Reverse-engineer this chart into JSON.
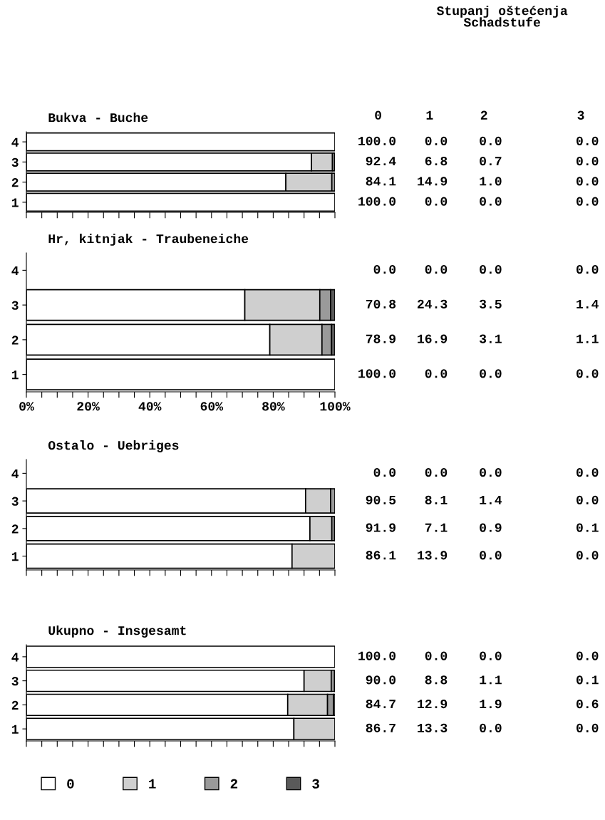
{
  "chart_data": [
    {
      "type": "bar",
      "orientation": "horizontal",
      "stacked": true,
      "title": "Bukva - Buche",
      "annotations": [
        "Stupanj oštećenja\nSchadstufe",
        "0",
        "1",
        "2",
        "3"
      ],
      "categories": [
        "4",
        "3",
        "2",
        "1"
      ],
      "series": [
        {
          "color": "#ffffff",
          "values": [
            100.0,
            92.4,
            84.1,
            100.0
          ],
          "value_labels": [
            "100.0",
            "92.4",
            "84.1",
            "100.0"
          ]
        },
        {
          "color": "#cfcfcf",
          "values": [
            0.0,
            6.8,
            14.9,
            0.0
          ],
          "value_labels": [
            "0.0",
            "6.8",
            "14.9",
            "0.0"
          ]
        },
        {
          "color": "#9a9a9a",
          "values": [
            0.0,
            0.7,
            1.0,
            0.0
          ],
          "value_labels": [
            "0.0",
            "0.7",
            "1.0",
            "0.0"
          ]
        },
        {
          "color": "#5a5a5a",
          "values": [
            0.0,
            0.0,
            0.0,
            0.0
          ],
          "value_labels": [
            "0.0",
            "0.0",
            "0.0",
            "0.0"
          ]
        }
      ],
      "xlim": [
        0,
        100
      ],
      "xticks": [
        {
          "value": 0,
          "label": null
        },
        {
          "value": 5,
          "label": null
        },
        {
          "value": 10,
          "label": null
        },
        {
          "value": 15,
          "label": null
        },
        {
          "value": 20,
          "label": null
        },
        {
          "value": 25,
          "label": null
        },
        {
          "value": 30,
          "label": null
        },
        {
          "value": 35,
          "label": null
        },
        {
          "value": 40,
          "label": null
        },
        {
          "value": 45,
          "label": null
        },
        {
          "value": 50,
          "label": null
        },
        {
          "value": 55,
          "label": null
        },
        {
          "value": 60,
          "label": null
        },
        {
          "value": 65,
          "label": null
        },
        {
          "value": 70,
          "label": null
        },
        {
          "value": 75,
          "label": null
        },
        {
          "value": 80,
          "label": null
        },
        {
          "value": 85,
          "label": null
        },
        {
          "value": 90,
          "label": null
        },
        {
          "value": 95,
          "label": null
        },
        {
          "value": 100,
          "label": null
        }
      ],
      "tick_labels": "y"
    },
    {
      "type": "bar",
      "orientation": "horizontal",
      "stacked": true,
      "title": "Hr, kitnjak - Traubeneiche",
      "categories": [
        "4",
        "3",
        "2",
        "1"
      ],
      "series": [
        {
          "color": "#ffffff",
          "values": [
            0.0,
            70.8,
            78.9,
            100.0
          ],
          "value_labels": [
            "0.0",
            "70.8",
            "78.9",
            "100.0"
          ]
        },
        {
          "color": "#cfcfcf",
          "values": [
            0.0,
            24.3,
            16.9,
            0.0
          ],
          "value_labels": [
            "0.0",
            "24.3",
            "16.9",
            "0.0"
          ]
        },
        {
          "color": "#9a9a9a",
          "values": [
            0.0,
            3.5,
            3.1,
            0.0
          ],
          "value_labels": [
            "0.0",
            "3.5",
            "3.1",
            "0.0"
          ]
        },
        {
          "color": "#5a5a5a",
          "values": [
            0.0,
            1.4,
            1.1,
            0.0
          ],
          "value_labels": [
            "0.0",
            "1.4",
            "1.1",
            "0.0"
          ]
        }
      ],
      "xlim": [
        0,
        100
      ],
      "xticks": [
        {
          "value": 0,
          "label": "0%"
        },
        {
          "value": 5,
          "label": null
        },
        {
          "value": 10,
          "label": null
        },
        {
          "value": 15,
          "label": null
        },
        {
          "value": 20,
          "label": "20%"
        },
        {
          "value": 25,
          "label": null
        },
        {
          "value": 30,
          "label": null
        },
        {
          "value": 35,
          "label": null
        },
        {
          "value": 40,
          "label": "40%"
        },
        {
          "value": 45,
          "label": null
        },
        {
          "value": 50,
          "label": null
        },
        {
          "value": 55,
          "label": null
        },
        {
          "value": 60,
          "label": "60%"
        },
        {
          "value": 65,
          "label": null
        },
        {
          "value": 70,
          "label": null
        },
        {
          "value": 75,
          "label": null
        },
        {
          "value": 80,
          "label": "80%"
        },
        {
          "value": 85,
          "label": null
        },
        {
          "value": 90,
          "label": null
        },
        {
          "value": 95,
          "label": null
        },
        {
          "value": 100,
          "label": "100%"
        }
      ]
    },
    {
      "type": "bar",
      "orientation": "horizontal",
      "stacked": true,
      "title": "Ostalo - Uebriges",
      "categories": [
        "4",
        "3",
        "2",
        "1"
      ],
      "series": [
        {
          "color": "#ffffff",
          "values": [
            0.0,
            90.5,
            91.9,
            86.1
          ],
          "value_labels": [
            "0.0",
            "90.5",
            "91.9",
            "86.1"
          ]
        },
        {
          "color": "#cfcfcf",
          "values": [
            0.0,
            8.1,
            7.1,
            13.9
          ],
          "value_labels": [
            "0.0",
            "8.1",
            "7.1",
            "13.9"
          ]
        },
        {
          "color": "#9a9a9a",
          "values": [
            0.0,
            1.4,
            0.9,
            0.0
          ],
          "value_labels": [
            "0.0",
            "1.4",
            "0.9",
            "0.0"
          ]
        },
        {
          "color": "#5a5a5a",
          "values": [
            0.0,
            0.0,
            0.1,
            0.0
          ],
          "value_labels": [
            "0.0",
            "0.0",
            "0.1",
            "0.0"
          ]
        }
      ],
      "xlim": [
        0,
        100
      ],
      "xticks": [
        {
          "value": 0,
          "label": null
        },
        {
          "value": 5,
          "label": null
        },
        {
          "value": 10,
          "label": null
        },
        {
          "value": 15,
          "label": null
        },
        {
          "value": 20,
          "label": null
        },
        {
          "value": 25,
          "label": null
        },
        {
          "value": 30,
          "label": null
        },
        {
          "value": 35,
          "label": null
        },
        {
          "value": 40,
          "label": null
        },
        {
          "value": 45,
          "label": null
        },
        {
          "value": 50,
          "label": null
        },
        {
          "value": 55,
          "label": null
        },
        {
          "value": 60,
          "label": null
        },
        {
          "value": 65,
          "label": null
        },
        {
          "value": 70,
          "label": null
        },
        {
          "value": 75,
          "label": null
        },
        {
          "value": 80,
          "label": null
        },
        {
          "value": 85,
          "label": null
        },
        {
          "value": 90,
          "label": null
        },
        {
          "value": 95,
          "label": null
        },
        {
          "value": 100,
          "label": null
        }
      ],
      "tick_labels": "y"
    },
    {
      "type": "bar",
      "orientation": "horizontal",
      "stacked": true,
      "title": "Ukupno - Insgesamt",
      "categories": [
        "4",
        "3",
        "2",
        "1"
      ],
      "series": [
        {
          "name": "0",
          "color": "#ffffff",
          "values": [
            100.0,
            90.0,
            84.7,
            86.7
          ],
          "value_labels": [
            "100.0",
            "90.0",
            "84.7",
            "86.7"
          ]
        },
        {
          "name": "1",
          "color": "#cfcfcf",
          "values": [
            0.0,
            8.8,
            12.9,
            13.3
          ],
          "value_labels": [
            "0.0",
            "8.8",
            "12.9",
            "13.3"
          ]
        },
        {
          "name": "2",
          "color": "#9a9a9a",
          "values": [
            0.0,
            1.1,
            1.9,
            0.0
          ],
          "value_labels": [
            "0.0",
            "1.1",
            "1.9",
            "0.0"
          ]
        },
        {
          "name": "3",
          "color": "#5a5a5a",
          "values": [
            0.0,
            0.1,
            0.6,
            0.0
          ],
          "value_labels": [
            "0.0",
            "0.1",
            "0.6",
            "0.0"
          ]
        }
      ],
      "xlim": [
        0,
        100
      ],
      "xticks": [
        {
          "value": 0,
          "label": null
        },
        {
          "value": 5,
          "label": null
        },
        {
          "value": 10,
          "label": null
        },
        {
          "value": 15,
          "label": null
        },
        {
          "value": 20,
          "label": null
        },
        {
          "value": 25,
          "label": null
        },
        {
          "value": 30,
          "label": null
        },
        {
          "value": 35,
          "label": null
        },
        {
          "value": 40,
          "label": null
        },
        {
          "value": 45,
          "label": null
        },
        {
          "value": 50,
          "label": null
        },
        {
          "value": 55,
          "label": null
        },
        {
          "value": 60,
          "label": null
        },
        {
          "value": 65,
          "label": null
        },
        {
          "value": 70,
          "label": null
        },
        {
          "value": 75,
          "label": null
        },
        {
          "value": 80,
          "label": null
        },
        {
          "value": 85,
          "label": null
        },
        {
          "value": 90,
          "label": null
        },
        {
          "value": 95,
          "label": null
        },
        {
          "value": 100,
          "label": null
        }
      ],
      "tick_labels": "y",
      "legend": "bottom"
    }
  ]
}
